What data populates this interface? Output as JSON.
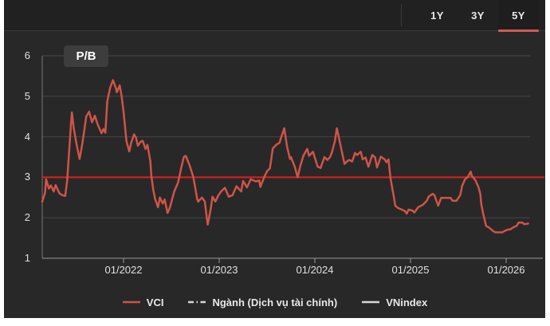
{
  "tabs": {
    "items": [
      {
        "label": "1Y",
        "selected": false
      },
      {
        "label": "3Y",
        "selected": false
      },
      {
        "label": "5Y",
        "selected": true
      }
    ]
  },
  "chart_badge": "P/B",
  "legend": [
    {
      "label": "VCI",
      "style": "solid",
      "color": "#cf5448"
    },
    {
      "label": "Ngành (Dịch vụ tài chính)",
      "style": "dash-dot",
      "color": "#d8d8d8"
    },
    {
      "label": "VNindex",
      "style": "solid",
      "color": "#d8d8d8"
    }
  ],
  "colors": {
    "page_bg": "#ffffff",
    "panel_bg": "#282828",
    "topbar_bg": "#212121",
    "grid": "#454545",
    "axis": "#9a9a9a",
    "text": "#e0e0e0",
    "series_red": "#cf5448",
    "reference_red": "#e0201c",
    "tab_underline": "#d05a52",
    "badge_bg": "#3d3d3d"
  },
  "chart_data": {
    "type": "line",
    "title": "P/B",
    "metric": "P/B",
    "grid": "horizontal",
    "legend_position": "bottom",
    "x_format": "decimal_year",
    "ylim": [
      1,
      6
    ],
    "xlim": [
      2021.15,
      2026.25
    ],
    "y_ticks": [
      6,
      5,
      4,
      3,
      2,
      1
    ],
    "x_ticks": [
      {
        "label": "01/2022",
        "t": 2022.0
      },
      {
        "label": "01/2023",
        "t": 2023.0
      },
      {
        "label": "01/2024",
        "t": 2024.0
      },
      {
        "label": "01/2025",
        "t": 2025.0
      },
      {
        "label": "01/2026",
        "t": 2026.0
      }
    ],
    "reference_line": {
      "value": 3.0,
      "color": "#e0201c"
    },
    "series": [
      {
        "name": "VCI",
        "color": "#cf5448",
        "points": [
          [
            2021.15,
            2.4
          ],
          [
            2021.18,
            2.62
          ],
          [
            2021.19,
            2.95
          ],
          [
            2021.22,
            2.72
          ],
          [
            2021.24,
            2.8
          ],
          [
            2021.27,
            2.65
          ],
          [
            2021.29,
            2.81
          ],
          [
            2021.33,
            2.6
          ],
          [
            2021.36,
            2.56
          ],
          [
            2021.39,
            2.54
          ],
          [
            2021.41,
            2.9
          ],
          [
            2021.43,
            3.6
          ],
          [
            2021.45,
            4.3
          ],
          [
            2021.46,
            4.6
          ],
          [
            2021.48,
            4.2
          ],
          [
            2021.51,
            3.8
          ],
          [
            2021.54,
            3.45
          ],
          [
            2021.56,
            3.7
          ],
          [
            2021.58,
            4.0
          ],
          [
            2021.61,
            4.5
          ],
          [
            2021.64,
            4.62
          ],
          [
            2021.67,
            4.36
          ],
          [
            2021.7,
            4.52
          ],
          [
            2021.73,
            4.3
          ],
          [
            2021.77,
            4.09
          ],
          [
            2021.79,
            4.19
          ],
          [
            2021.81,
            4.1
          ],
          [
            2021.83,
            4.88
          ],
          [
            2021.86,
            5.21
          ],
          [
            2021.89,
            5.4
          ],
          [
            2021.92,
            5.2
          ],
          [
            2021.93,
            5.1
          ],
          [
            2021.96,
            5.27
          ],
          [
            2021.98,
            5.0
          ],
          [
            2022.0,
            4.62
          ],
          [
            2022.03,
            3.9
          ],
          [
            2022.06,
            3.64
          ],
          [
            2022.08,
            3.85
          ],
          [
            2022.11,
            4.06
          ],
          [
            2022.13,
            3.98
          ],
          [
            2022.15,
            3.78
          ],
          [
            2022.18,
            3.88
          ],
          [
            2022.2,
            3.9
          ],
          [
            2022.23,
            3.7
          ],
          [
            2022.25,
            3.8
          ],
          [
            2022.28,
            3.4
          ],
          [
            2022.29,
            3.05
          ],
          [
            2022.31,
            2.7
          ],
          [
            2022.33,
            2.46
          ],
          [
            2022.36,
            2.26
          ],
          [
            2022.38,
            2.5
          ],
          [
            2022.41,
            2.35
          ],
          [
            2022.43,
            2.45
          ],
          [
            2022.46,
            2.12
          ],
          [
            2022.48,
            2.22
          ],
          [
            2022.49,
            2.3
          ],
          [
            2022.53,
            2.65
          ],
          [
            2022.57,
            2.87
          ],
          [
            2022.6,
            3.2
          ],
          [
            2022.63,
            3.5
          ],
          [
            2022.65,
            3.53
          ],
          [
            2022.69,
            3.3
          ],
          [
            2022.73,
            3.0
          ],
          [
            2022.77,
            2.46
          ],
          [
            2022.78,
            2.4
          ],
          [
            2022.82,
            2.5
          ],
          [
            2022.85,
            2.4
          ],
          [
            2022.87,
            2.0
          ],
          [
            2022.88,
            1.83
          ],
          [
            2022.91,
            2.2
          ],
          [
            2022.93,
            2.52
          ],
          [
            2022.96,
            2.4
          ],
          [
            2022.99,
            2.55
          ],
          [
            2023.02,
            2.65
          ],
          [
            2023.06,
            2.74
          ],
          [
            2023.1,
            2.52
          ],
          [
            2023.14,
            2.56
          ],
          [
            2023.18,
            2.78
          ],
          [
            2023.23,
            2.65
          ],
          [
            2023.25,
            2.91
          ],
          [
            2023.29,
            2.75
          ],
          [
            2023.33,
            2.95
          ],
          [
            2023.38,
            2.9
          ],
          [
            2023.42,
            2.92
          ],
          [
            2023.43,
            2.76
          ],
          [
            2023.47,
            3.0
          ],
          [
            2023.5,
            3.15
          ],
          [
            2023.53,
            3.22
          ],
          [
            2023.56,
            3.71
          ],
          [
            2023.6,
            3.81
          ],
          [
            2023.63,
            3.85
          ],
          [
            2023.65,
            4.0
          ],
          [
            2023.68,
            4.21
          ],
          [
            2023.71,
            3.75
          ],
          [
            2023.74,
            3.45
          ],
          [
            2023.75,
            3.5
          ],
          [
            2023.79,
            3.26
          ],
          [
            2023.82,
            3.0
          ],
          [
            2023.85,
            3.3
          ],
          [
            2023.88,
            3.53
          ],
          [
            2023.92,
            3.7
          ],
          [
            2023.94,
            3.53
          ],
          [
            2023.98,
            3.63
          ],
          [
            2024.03,
            3.26
          ],
          [
            2024.06,
            3.23
          ],
          [
            2024.1,
            3.5
          ],
          [
            2024.13,
            3.43
          ],
          [
            2024.16,
            3.5
          ],
          [
            2024.18,
            3.63
          ],
          [
            2024.21,
            3.9
          ],
          [
            2024.23,
            4.21
          ],
          [
            2024.27,
            3.77
          ],
          [
            2024.31,
            3.33
          ],
          [
            2024.34,
            3.4
          ],
          [
            2024.36,
            3.43
          ],
          [
            2024.39,
            3.39
          ],
          [
            2024.42,
            3.6
          ],
          [
            2024.44,
            3.55
          ],
          [
            2024.48,
            3.63
          ],
          [
            2024.5,
            3.44
          ],
          [
            2024.53,
            3.49
          ],
          [
            2024.56,
            3.26
          ],
          [
            2024.6,
            3.55
          ],
          [
            2024.63,
            3.49
          ],
          [
            2024.65,
            3.24
          ],
          [
            2024.69,
            3.51
          ],
          [
            2024.73,
            3.44
          ],
          [
            2024.75,
            3.37
          ],
          [
            2024.77,
            3.44
          ],
          [
            2024.79,
            2.99
          ],
          [
            2024.81,
            2.72
          ],
          [
            2024.83,
            2.46
          ],
          [
            2024.84,
            2.3
          ],
          [
            2024.87,
            2.24
          ],
          [
            2024.9,
            2.21
          ],
          [
            2024.94,
            2.17
          ],
          [
            2024.96,
            2.1
          ],
          [
            2024.98,
            2.2
          ],
          [
            2025.02,
            2.18
          ],
          [
            2025.04,
            2.13
          ],
          [
            2025.08,
            2.26
          ],
          [
            2025.13,
            2.32
          ],
          [
            2025.17,
            2.42
          ],
          [
            2025.19,
            2.52
          ],
          [
            2025.23,
            2.59
          ],
          [
            2025.25,
            2.56
          ],
          [
            2025.28,
            2.36
          ],
          [
            2025.29,
            2.3
          ],
          [
            2025.32,
            2.49
          ],
          [
            2025.36,
            2.49
          ],
          [
            2025.42,
            2.49
          ],
          [
            2025.44,
            2.42
          ],
          [
            2025.48,
            2.42
          ],
          [
            2025.52,
            2.56
          ],
          [
            2025.54,
            2.79
          ],
          [
            2025.57,
            2.95
          ],
          [
            2025.6,
            3.01
          ],
          [
            2025.63,
            3.14
          ],
          [
            2025.64,
            3.04
          ],
          [
            2025.67,
            2.95
          ],
          [
            2025.68,
            2.92
          ],
          [
            2025.71,
            2.76
          ],
          [
            2025.73,
            2.59
          ],
          [
            2025.74,
            2.33
          ],
          [
            2025.76,
            2.1
          ],
          [
            2025.78,
            1.9
          ],
          [
            2025.79,
            1.8
          ],
          [
            2025.82,
            1.76
          ],
          [
            2025.84,
            1.72
          ],
          [
            2025.87,
            1.66
          ],
          [
            2025.89,
            1.64
          ],
          [
            2025.93,
            1.64
          ],
          [
            2025.96,
            1.64
          ],
          [
            2025.98,
            1.67
          ],
          [
            2026.02,
            1.71
          ],
          [
            2026.04,
            1.71
          ],
          [
            2026.08,
            1.77
          ],
          [
            2026.11,
            1.8
          ],
          [
            2026.13,
            1.88
          ],
          [
            2026.17,
            1.88
          ],
          [
            2026.19,
            1.84
          ],
          [
            2026.22,
            1.85
          ],
          [
            2026.23,
            1.86
          ]
        ]
      }
    ]
  }
}
